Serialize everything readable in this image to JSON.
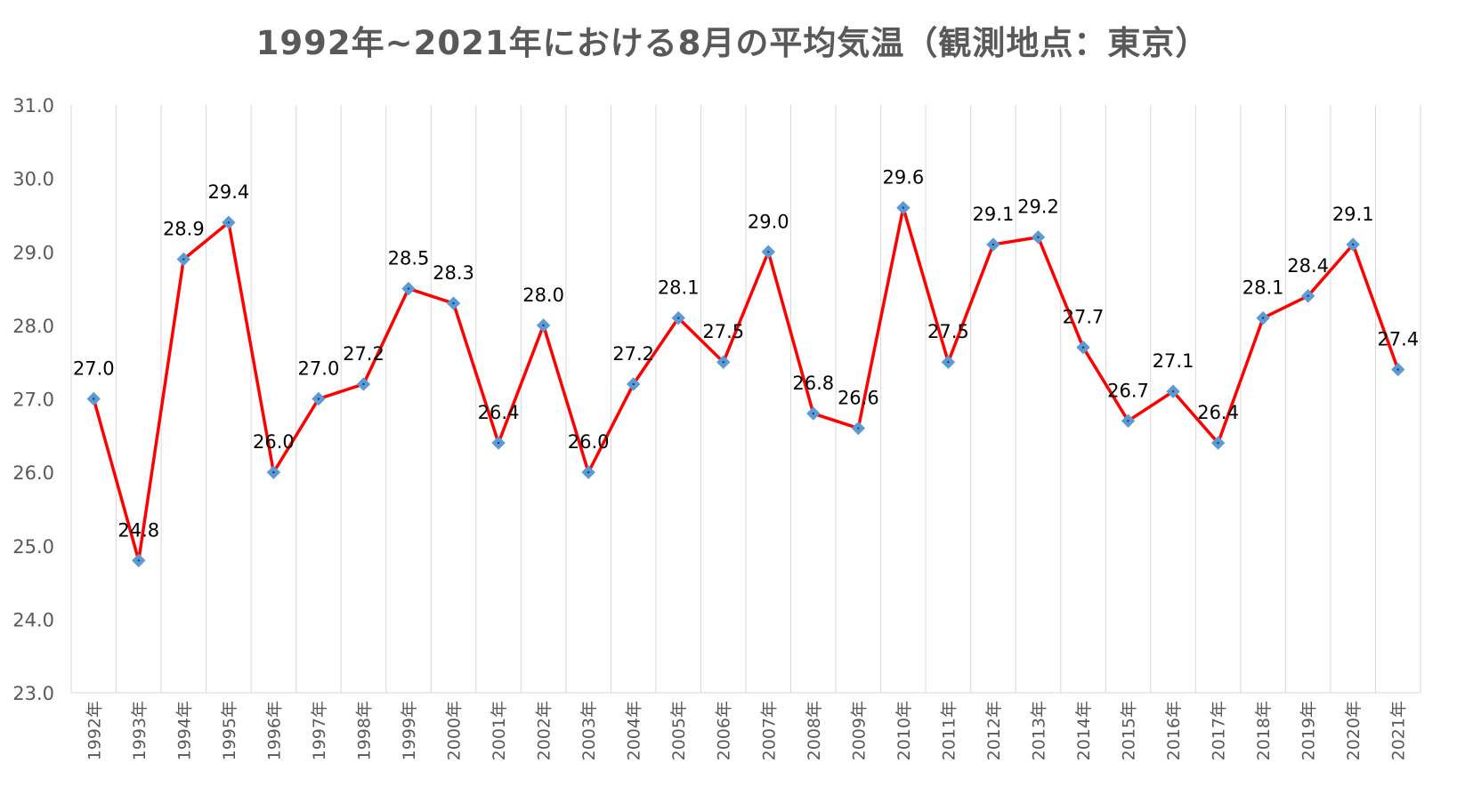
{
  "chart_data": {
    "type": "line",
    "title": "1992年~2021年における8月の平均気温（観測地点：東京）",
    "xlabel": "",
    "ylabel": "",
    "categories": [
      "1992年",
      "1993年",
      "1994年",
      "1995年",
      "1996年",
      "1997年",
      "1998年",
      "1999年",
      "2000年",
      "2001年",
      "2002年",
      "2003年",
      "2004年",
      "2005年",
      "2006年",
      "2007年",
      "2008年",
      "2009年",
      "2010年",
      "2011年",
      "2012年",
      "2013年",
      "2014年",
      "2015年",
      "2016年",
      "2017年",
      "2018年",
      "2019年",
      "2020年",
      "2021年"
    ],
    "values": [
      27.0,
      24.8,
      28.9,
      29.4,
      26.0,
      27.0,
      27.2,
      28.5,
      28.3,
      26.4,
      28.0,
      26.0,
      27.2,
      28.1,
      27.5,
      29.0,
      26.8,
      26.6,
      29.6,
      27.5,
      29.1,
      29.2,
      27.7,
      26.7,
      27.1,
      26.4,
      28.1,
      28.4,
      29.1,
      27.4
    ],
    "data_labels": [
      "27.0",
      "24.8",
      "28.9",
      "29.4",
      "26.0",
      "27.0",
      "27.2",
      "28.5",
      "28.3",
      "26.4",
      "28.0",
      "26.0",
      "27.2",
      "28.1",
      "27.5",
      "29.0",
      "26.8",
      "26.6",
      "29.6",
      "27.5",
      "29.1",
      "29.2",
      "27.7",
      "26.7",
      "27.1",
      "26.4",
      "28.1",
      "28.4",
      "29.1",
      "27.4"
    ],
    "ylim": [
      23.0,
      31.0
    ],
    "y_ticks": [
      "23.0",
      "24.0",
      "25.0",
      "26.0",
      "27.0",
      "28.0",
      "29.0",
      "30.0",
      "31.0"
    ],
    "grid": "vertical",
    "legend": "none",
    "line_color": "#ff0000",
    "marker_color": "#5b9bd5",
    "marker_shape": "diamond"
  }
}
